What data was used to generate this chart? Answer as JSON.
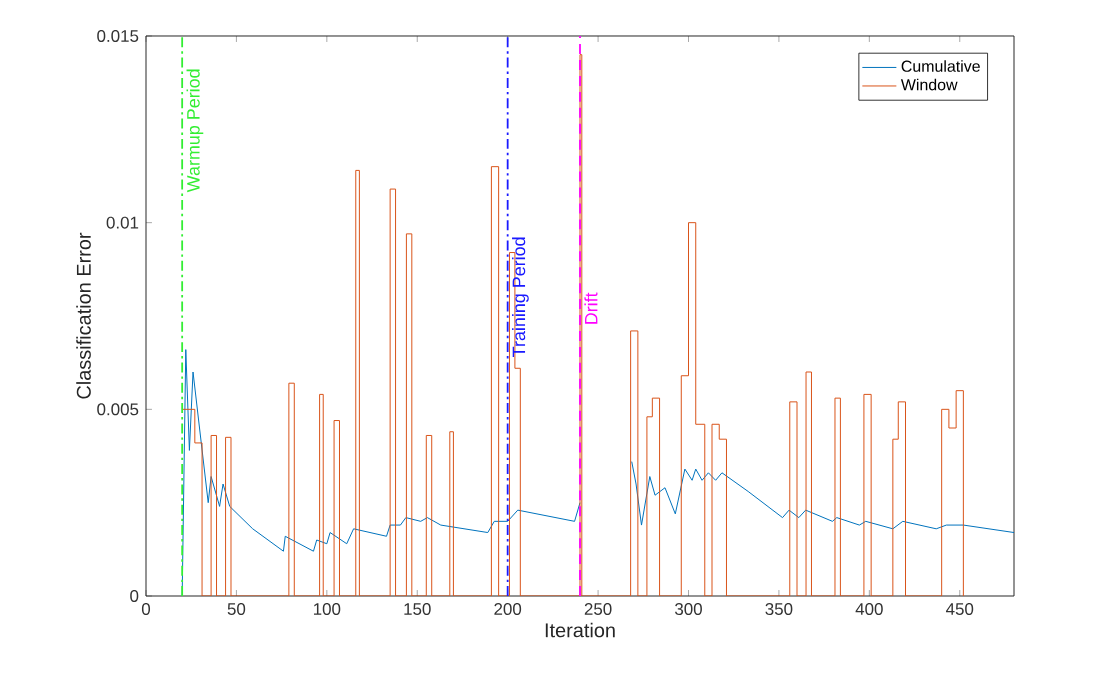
{
  "chart_data": {
    "type": "line",
    "xlabel": "Iteration",
    "ylabel": "Classification Error",
    "xlim": [
      0,
      480
    ],
    "ylim": [
      0,
      0.015
    ],
    "xticks": [
      0,
      50,
      100,
      150,
      200,
      250,
      300,
      350,
      400,
      450
    ],
    "yticks": [
      0,
      0.005,
      0.01,
      0.015
    ],
    "legend": "top right",
    "grid": false,
    "series": [
      {
        "name": "Cumulative",
        "color": "#0072bd",
        "x": [
          20,
          22,
          24,
          26,
          29.6,
          34.4,
          36,
          40.7,
          42.6,
          46.3,
          59,
          76,
          77,
          92.6,
          94.4,
          100,
          101.8,
          111,
          114.8,
          133,
          135,
          140.7,
          143.7,
          151.9,
          155.6,
          163,
          189,
          192.6,
          200,
          205.6,
          237,
          240,
          241,
          268.6,
          271,
          274,
          278.6,
          281.5,
          287,
          292.7,
          298,
          302,
          304,
          307.5,
          311,
          315,
          318.5,
          333,
          352,
          355.6,
          361,
          364.8,
          379.6,
          382,
          394.5,
          398,
          413,
          418.5,
          437,
          442.6,
          452,
          480
        ],
        "values": [
          0,
          0.0066,
          0.0039,
          0.006,
          0.0045,
          0.0025,
          0.0032,
          0.0024,
          0.003,
          0.0024,
          0.0018,
          0.0012,
          0.0016,
          0.0012,
          0.0015,
          0.0014,
          0.0017,
          0.0014,
          0.0018,
          0.0016,
          0.0019,
          0.0019,
          0.0021,
          0.002,
          0.0021,
          0.0019,
          0.0017,
          0.002,
          0.002,
          0.0023,
          0.002,
          0.0025,
          null,
          0.0036,
          0.003,
          0.0019,
          0.0032,
          0.0027,
          0.0029,
          0.0022,
          0.0034,
          0.0031,
          0.0034,
          0.0031,
          0.0033,
          0.0031,
          0.0033,
          0.0028,
          0.0021,
          0.0023,
          0.0021,
          0.0023,
          0.002,
          0.0021,
          0.0019,
          0.002,
          0.0018,
          0.002,
          0.0018,
          0.0019,
          0.0019,
          0.0017
        ]
      },
      {
        "name": "Window",
        "type": "step",
        "color": "#d95319",
        "x": [
          20,
          27,
          31,
          36,
          39,
          44,
          47,
          79,
          82,
          96,
          98,
          104,
          107,
          116,
          118,
          135,
          138,
          144,
          147,
          155,
          158,
          168,
          170,
          191,
          195,
          201,
          204,
          207,
          240,
          241,
          268,
          272,
          277,
          280,
          284,
          296,
          300,
          304,
          309,
          313,
          317,
          321,
          356,
          360,
          365,
          368,
          381,
          384,
          397,
          401,
          413,
          416,
          420,
          440,
          444,
          448,
          452
        ],
        "values": [
          0.005,
          0.0041,
          0,
          0.0043,
          0,
          0.00425,
          0,
          0.0057,
          0,
          0.0054,
          0,
          0.0047,
          0,
          0.0114,
          0,
          0.0109,
          0,
          0.0097,
          0,
          0.0043,
          0,
          0.0044,
          0,
          0.0115,
          0,
          0.0092,
          0.0061,
          0,
          0.0145,
          0,
          0.0071,
          0,
          0.0048,
          0.0053,
          0,
          0.0059,
          0.01,
          0.0046,
          0,
          0.0046,
          0.0042,
          0,
          0.0052,
          0,
          0.006,
          0,
          0.0053,
          0,
          0.0054,
          0,
          0.0042,
          0.0052,
          0,
          0.005,
          0.0045,
          0.0055,
          0
        ]
      }
    ],
    "ref_lines": [
      {
        "axis": "x",
        "value": 20,
        "label": "Warmup Period",
        "color": "#33ee33",
        "line_style": "dashdot"
      },
      {
        "axis": "x",
        "value": 200,
        "label": "Training Period",
        "color": "#1a1aff",
        "line_style": "dashdot"
      },
      {
        "axis": "x",
        "value": 240,
        "label": "Drift",
        "color": "#ff00ff",
        "line_style": "dashed"
      }
    ]
  }
}
